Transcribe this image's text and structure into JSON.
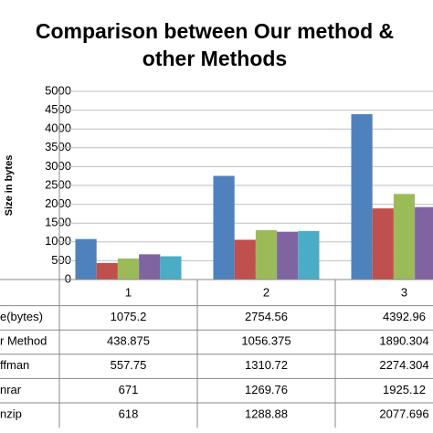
{
  "chart_data": {
    "type": "bar",
    "title_lines": [
      "Comparison between Our method &",
      "other Methods"
    ],
    "y_label": "Size in bytes",
    "categories": [
      "1",
      "2",
      "3"
    ],
    "series": [
      {
        "name": "e(bytes)",
        "color": "#4f81bd",
        "values": [
          1075.2,
          2754.56,
          4392.96
        ]
      },
      {
        "name": "r Method",
        "color": "#c0504d",
        "values": [
          438.875,
          1056.375,
          1890.304
        ]
      },
      {
        "name": "ffman",
        "color": "#9bbb59",
        "values": [
          557.75,
          1310.72,
          2274.304
        ]
      },
      {
        "name": "nrar",
        "color": "#8064a2",
        "values": [
          671,
          1269.76,
          1925.12
        ]
      },
      {
        "name": "nzip",
        "color": "#4bacc6",
        "values": [
          618,
          1288.88,
          2077.696
        ]
      }
    ],
    "ylim": [
      0,
      5000
    ],
    "yticks": [
      0,
      500,
      1000,
      1500,
      2000,
      2500,
      3000,
      3500,
      4000,
      4500,
      5000
    ],
    "grid": true,
    "data_table": true
  }
}
